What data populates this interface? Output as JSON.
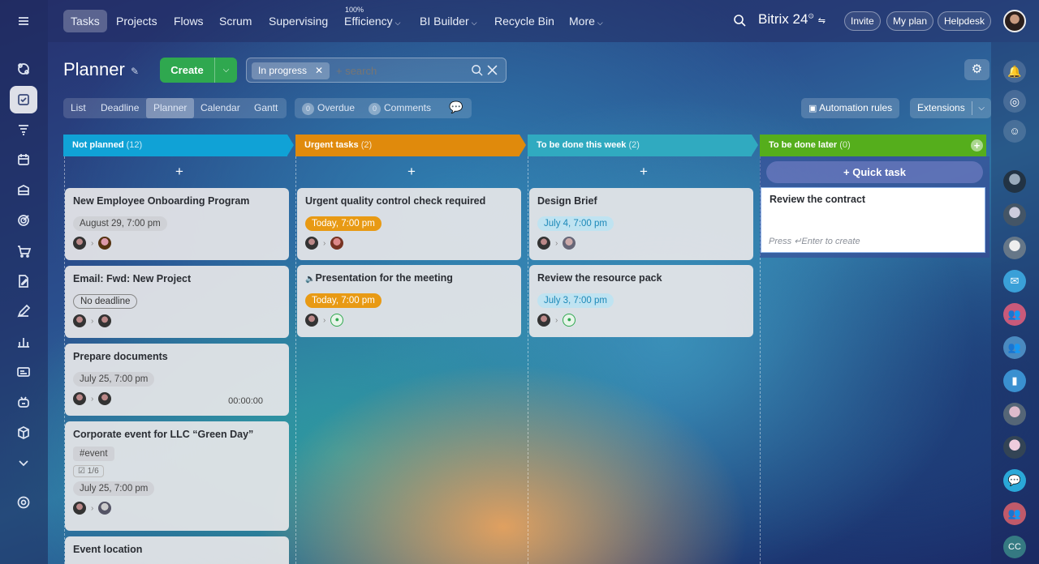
{
  "left_rail": {
    "icons": [
      "chat-icon",
      "tasks-icon",
      "funnel-icon",
      "calendar-icon",
      "storage-icon",
      "target-icon",
      "cart-icon",
      "sign-icon",
      "pen-icon",
      "analytics-icon",
      "contact-center-icon",
      "bot-icon",
      "box-icon",
      "more-chevron-icon",
      "settings-icon"
    ]
  },
  "topnav": {
    "items": [
      {
        "label": "Tasks"
      },
      {
        "label": "Projects"
      },
      {
        "label": "Flows"
      },
      {
        "label": "Scrum"
      },
      {
        "label": "Supervising"
      },
      {
        "label": "Efficiency",
        "sup": "100%"
      },
      {
        "label": "BI Builder"
      },
      {
        "label": "Recycle Bin"
      },
      {
        "label": "More"
      }
    ],
    "logo": "Bitrix 24",
    "invite": "Invite",
    "my_plan": "My plan",
    "helpdesk": "Helpdesk"
  },
  "page": {
    "title": "Planner",
    "create": "Create",
    "filter_chip": "In progress",
    "search_placeholder": "+ search"
  },
  "view_tabs": [
    "List",
    "Deadline",
    "Planner",
    "Calendar",
    "Gantt"
  ],
  "counters": {
    "overdue_count": "0",
    "overdue": "Overdue",
    "comments_count": "0",
    "comments": "Comments"
  },
  "actions": {
    "automation": "Automation rules",
    "extensions": "Extensions"
  },
  "columns": [
    {
      "title": "Not planned",
      "count": "(12)",
      "color": "#10a2d6"
    },
    {
      "title": "Urgent tasks",
      "count": "(2)",
      "color": "#e08a0c"
    },
    {
      "title": "To be done this week",
      "count": "(2)",
      "color": "#30aac0"
    },
    {
      "title": "To be done later",
      "count": "(0)",
      "color": "#55ae1c"
    }
  ],
  "cards": {
    "c1": {
      "title": "New Employee Onboarding Program",
      "tag": "August 29, 7:00 pm"
    },
    "c2": {
      "title": "Email: Fwd: New Project",
      "tag": "No deadline"
    },
    "c3": {
      "title": "Prepare documents",
      "tag": "July 25, 7:00 pm",
      "timer": "00:00:00"
    },
    "c4": {
      "title": "Corporate event for LLC “Green Day”",
      "hashtag": "#event",
      "checklist": "1/6",
      "tag": "July 25, 7:00 pm"
    },
    "c5": {
      "title": "Event location"
    },
    "u1": {
      "title": "Urgent quality control check required",
      "tag": "Today, 7:00 pm"
    },
    "u2": {
      "title": "Presentation for the meeting",
      "tag": "Today, 7:00 pm"
    },
    "w1": {
      "title": "Design Brief",
      "tag": "July 4, 7:00 pm"
    },
    "w2": {
      "title": "Review the resource pack",
      "tag": "July 3, 7:00 pm"
    }
  },
  "quick": {
    "button": "+ Quick task",
    "input_value": "Review the contract",
    "hint_press": "Press",
    "hint_rest": "Enter to create"
  },
  "right_rail": {
    "avatar_badge": "CC"
  }
}
